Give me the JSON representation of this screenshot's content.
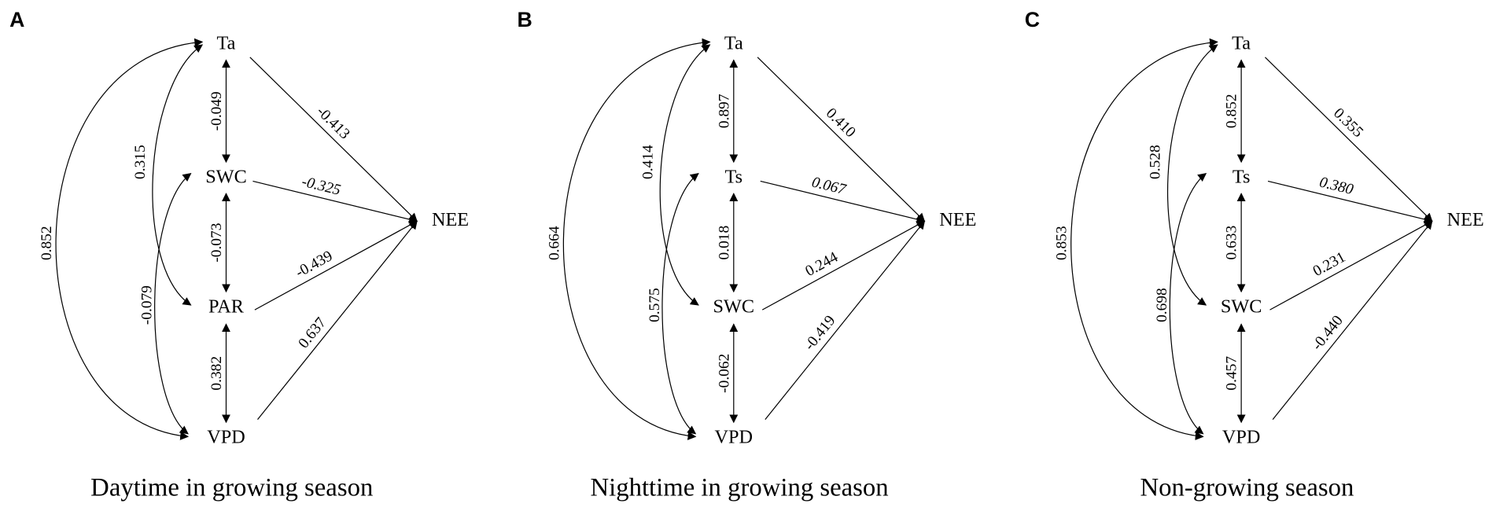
{
  "panels": [
    {
      "letter": "A",
      "caption": "Daytime in growing season",
      "nodes": [
        "Ta",
        "SWC",
        "PAR",
        "VPD",
        "NEE"
      ],
      "edges": [
        "-0.049",
        "-0.073",
        "0.382",
        "-0.413",
        "-0.325",
        "-0.439",
        "0.637",
        "0.852",
        "0.315",
        "-0.079"
      ]
    },
    {
      "letter": "B",
      "caption": "Nighttime in growing season",
      "nodes": [
        "Ta",
        "Ts",
        "SWC",
        "VPD",
        "NEE"
      ],
      "edges": [
        "0.897",
        "0.018",
        "-0.062",
        "0.410",
        "0.067",
        "0.244",
        "-0.419",
        "0.664",
        "0.414",
        "0.575"
      ]
    },
    {
      "letter": "C",
      "caption": "Non-growing season",
      "nodes": [
        "Ta",
        "Ts",
        "SWC",
        "VPD",
        "NEE"
      ],
      "edges": [
        "0.852",
        "0.633",
        "0.457",
        "0.355",
        "0.380",
        "0.231",
        "-0.440",
        "0.853",
        "0.528",
        "0.698"
      ]
    }
  ]
}
